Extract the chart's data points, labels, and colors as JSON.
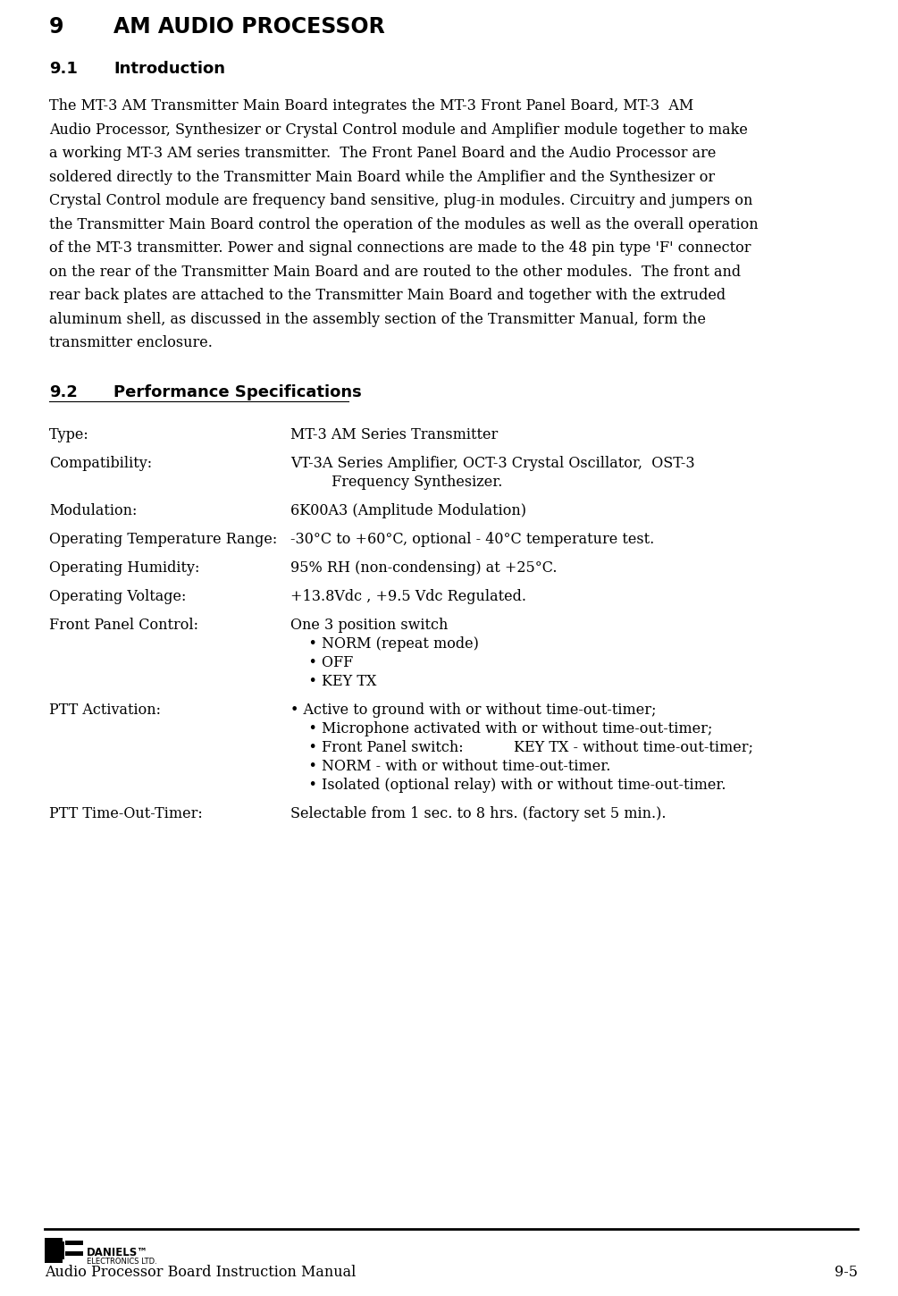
{
  "page_title_num": "9",
  "page_title_text": "AM AUDIO PROCESSOR",
  "section_91_title": "9.1",
  "section_91_text": "Introduction",
  "intro_lines": [
    "The MT-3 AM Transmitter Main Board integrates the MT-3 Front Panel Board, MT-3  AM",
    "Audio Processor, Synthesizer or Crystal Control module and Amplifier module together to make",
    "a working MT-3 AM series transmitter.  The Front Panel Board and the Audio Processor are",
    "soldered directly to the Transmitter Main Board while the Amplifier and the Synthesizer or",
    "Crystal Control module are frequency band sensitive, plug-in modules. Circuitry and jumpers on",
    "the Transmitter Main Board control the operation of the modules as well as the overall operation",
    "of the MT-3 transmitter. Power and signal connections are made to the 48 pin type 'F' connector",
    "on the rear of the Transmitter Main Board and are routed to the other modules.  The front and",
    "rear back plates are attached to the Transmitter Main Board and together with the extruded",
    "aluminum shell, as discussed in the assembly section of the Transmitter Manual, form the",
    "transmitter enclosure."
  ],
  "section_92_num": "9.2",
  "section_92_text": "Performance Specifications",
  "specs": [
    {
      "label": "Type:",
      "value_lines": [
        "MT-3 AM Series Transmitter"
      ]
    },
    {
      "label": "Compatibility:",
      "value_lines": [
        "VT-3A Series Amplifier, OCT-3 Crystal Oscillator,  OST-3",
        "         Frequency Synthesizer."
      ]
    },
    {
      "label": "Modulation:",
      "value_lines": [
        "6K00A3 (Amplitude Modulation)"
      ]
    },
    {
      "label": "Operating Temperature Range:",
      "value_lines": [
        "-30°C to +60°C, optional - 40°C temperature test."
      ]
    },
    {
      "label": "Operating Humidity:",
      "value_lines": [
        "95% RH (non-condensing) at +25°C."
      ]
    },
    {
      "label": "Operating Voltage:",
      "value_lines": [
        "+13.8Vdc , +9.5 Vdc Regulated."
      ]
    },
    {
      "label": "Front Panel Control:",
      "value_lines": [
        "One 3 position switch",
        "    • NORM (repeat mode)",
        "    • OFF",
        "    • KEY TX"
      ]
    },
    {
      "label": "PTT Activation:",
      "value_lines": [
        "• Active to ground with or without time-out-timer;",
        "    • Microphone activated with or without time-out-timer;",
        "    • Front Panel switch:           KEY TX - without time-out-timer;",
        "    • NORM - with or without time-out-timer.",
        "    • Isolated (optional relay) with or without time-out-timer."
      ]
    },
    {
      "label": "PTT Time-Out-Timer:",
      "value_lines": [
        "Selectable from 1 sec. to 8 hrs. (factory set 5 min.)."
      ]
    }
  ],
  "footer_left": "Audio Processor Board Instruction Manual",
  "footer_right": "9-5",
  "bg_color": "#ffffff"
}
